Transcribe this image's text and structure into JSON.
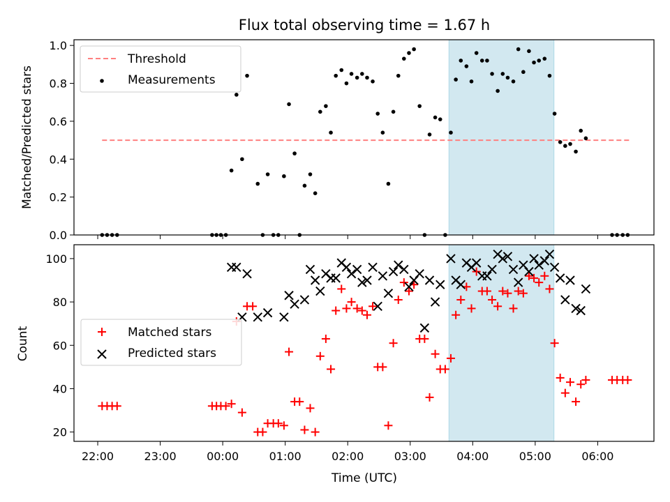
{
  "chart_data": [
    {
      "type": "scatter",
      "panel": "top",
      "title": "Flux total observing time = 1.67 h",
      "xlabel": "",
      "ylabel": "Matched/Predicted stars",
      "ylim": [
        0,
        1.03
      ],
      "yticks": [
        0.0,
        0.2,
        0.4,
        0.6,
        0.8,
        1.0
      ],
      "ytick_labels": [
        "0.0",
        "0.2",
        "0.4",
        "0.6",
        "0.8",
        "1.0"
      ],
      "legend_position": "top-left",
      "grid": false,
      "highlight_span": {
        "start": 3.62,
        "end": 5.3,
        "color": "#d2e8f0"
      },
      "threshold": {
        "name": "Threshold",
        "value": 0.5,
        "x_start": -1.93,
        "x_end": 6.53,
        "color": "#ff7f7f"
      },
      "series": [
        {
          "name": "Measurements",
          "color": "#000000",
          "x": [
            -1.93,
            -1.85,
            -1.77,
            -1.69,
            -0.17,
            -0.1,
            -0.03,
            0.05,
            0.14,
            0.22,
            0.31,
            0.39,
            0.56,
            0.64,
            0.72,
            0.81,
            0.89,
            0.98,
            1.06,
            1.15,
            1.23,
            1.31,
            1.4,
            1.48,
            1.56,
            1.65,
            1.73,
            1.81,
            1.9,
            1.98,
            2.06,
            2.15,
            2.23,
            2.31,
            2.4,
            2.48,
            2.56,
            2.65,
            2.73,
            2.81,
            2.9,
            2.98,
            3.06,
            3.15,
            3.23,
            3.31,
            3.4,
            3.48,
            3.56,
            3.65,
            3.73,
            3.81,
            3.9,
            3.98,
            4.06,
            4.15,
            4.23,
            4.31,
            4.4,
            4.48,
            4.56,
            4.65,
            4.73,
            4.81,
            4.9,
            4.98,
            5.06,
            5.15,
            5.23,
            5.31,
            5.4,
            5.48,
            5.56,
            5.65,
            5.73,
            5.81,
            6.23,
            6.31,
            6.4,
            6.48
          ],
          "y": [
            0,
            0,
            0,
            0,
            0,
            0,
            0,
            0,
            0.34,
            0.74,
            0.4,
            0.84,
            0.27,
            0,
            0.32,
            0,
            0,
            0.31,
            0.69,
            0.43,
            0,
            0.26,
            0.32,
            0.22,
            0.65,
            0.68,
            0.54,
            0.84,
            0.87,
            0.8,
            0.85,
            0.83,
            0.85,
            0.83,
            0.81,
            0.64,
            0.54,
            0.27,
            0.65,
            0.84,
            0.93,
            0.96,
            0.98,
            0.68,
            0,
            0.53,
            0.62,
            0.61,
            0,
            0.54,
            0.82,
            0.92,
            0.89,
            0.81,
            0.96,
            0.92,
            0.92,
            0.85,
            0.76,
            0.85,
            0.83,
            0.81,
            0.98,
            0.86,
            0.97,
            0.91,
            0.92,
            0.93,
            0.84,
            0.64,
            0.49,
            0.47,
            0.48,
            0.44,
            0.55,
            0.51,
            0,
            0,
            0,
            0
          ]
        }
      ]
    },
    {
      "type": "scatter",
      "panel": "bottom",
      "xlabel": "Time (UTC)",
      "ylabel": "Count",
      "xlim": [
        -2.38,
        6.9
      ],
      "xticks": [
        -2,
        -1,
        0,
        1,
        2,
        3,
        4,
        5,
        6
      ],
      "xtick_labels": [
        "22:00",
        "23:00",
        "00:00",
        "01:00",
        "02:00",
        "03:00",
        "04:00",
        "05:00",
        "06:00"
      ],
      "ylim": [
        15.7,
        106.4
      ],
      "yticks": [
        20,
        40,
        60,
        80,
        100
      ],
      "ytick_labels": [
        "20",
        "40",
        "60",
        "80",
        "100"
      ],
      "legend_position": "center-left",
      "grid": false,
      "highlight_span": {
        "start": 3.62,
        "end": 5.3,
        "color": "#d2e8f0"
      },
      "series": [
        {
          "name": "Matched stars",
          "marker": "plus",
          "color": "#ff0000",
          "x": [
            -1.93,
            -1.85,
            -1.77,
            -1.69,
            -0.17,
            -0.1,
            -0.03,
            0.05,
            0.14,
            0.22,
            0.31,
            0.39,
            0.48,
            0.56,
            0.64,
            0.72,
            0.81,
            0.89,
            0.98,
            1.06,
            1.15,
            1.23,
            1.31,
            1.4,
            1.48,
            1.56,
            1.65,
            1.73,
            1.81,
            1.9,
            1.98,
            2.06,
            2.15,
            2.23,
            2.31,
            2.4,
            2.48,
            2.56,
            2.65,
            2.73,
            2.81,
            2.9,
            2.98,
            3.06,
            3.15,
            3.23,
            3.31,
            3.4,
            3.48,
            3.56,
            3.65,
            3.73,
            3.81,
            3.9,
            3.98,
            4.06,
            4.15,
            4.23,
            4.31,
            4.4,
            4.48,
            4.56,
            4.65,
            4.73,
            4.81,
            4.9,
            4.98,
            5.06,
            5.15,
            5.23,
            5.31,
            5.4,
            5.48,
            5.56,
            5.65,
            5.73,
            5.81,
            6.23,
            6.31,
            6.4,
            6.48
          ],
          "y": [
            32,
            32,
            32,
            32,
            32,
            32,
            32,
            32,
            33,
            71,
            29,
            78,
            78,
            20,
            20,
            24,
            24,
            24,
            23,
            57,
            34,
            34,
            21,
            31,
            20,
            55,
            63,
            49,
            76,
            86,
            77,
            80,
            77,
            76,
            74,
            78,
            50,
            50,
            23,
            61,
            81,
            89,
            85,
            88,
            63,
            63,
            36,
            56,
            49,
            49,
            54,
            74,
            81,
            87,
            77,
            94,
            85,
            85,
            81,
            78,
            85,
            84,
            77,
            85,
            84,
            92,
            91,
            89,
            92,
            86,
            61,
            45,
            38,
            43,
            34,
            42,
            44,
            44,
            44,
            44,
            44
          ]
        },
        {
          "name": "Predicted stars",
          "marker": "x",
          "color": "#000000",
          "x": [
            0.14,
            0.22,
            0.31,
            0.39,
            0.56,
            0.72,
            0.98,
            1.06,
            1.15,
            1.31,
            1.4,
            1.48,
            1.56,
            1.65,
            1.73,
            1.81,
            1.9,
            1.98,
            2.06,
            2.15,
            2.23,
            2.31,
            2.4,
            2.48,
            2.56,
            2.65,
            2.73,
            2.81,
            2.9,
            2.98,
            3.06,
            3.15,
            3.23,
            3.31,
            3.4,
            3.48,
            3.65,
            3.73,
            3.81,
            3.9,
            3.98,
            4.06,
            4.15,
            4.23,
            4.31,
            4.4,
            4.48,
            4.56,
            4.65,
            4.73,
            4.81,
            4.9,
            4.98,
            5.06,
            5.15,
            5.23,
            5.31,
            5.4,
            5.48,
            5.56,
            5.65,
            5.73,
            5.81
          ],
          "y": [
            96,
            96,
            73,
            93,
            73,
            75,
            73,
            83,
            79,
            81,
            95,
            90,
            85,
            93,
            91,
            91,
            98,
            96,
            93,
            95,
            89,
            90,
            96,
            78,
            92,
            84,
            94,
            97,
            95,
            87,
            90,
            93,
            68,
            90,
            80,
            88,
            100,
            90,
            88,
            98,
            96,
            98,
            92,
            92,
            95,
            102,
            100,
            101,
            95,
            89,
            97,
            94,
            100,
            97,
            99,
            102,
            96,
            91,
            81,
            90,
            77,
            76,
            86
          ]
        }
      ]
    }
  ]
}
